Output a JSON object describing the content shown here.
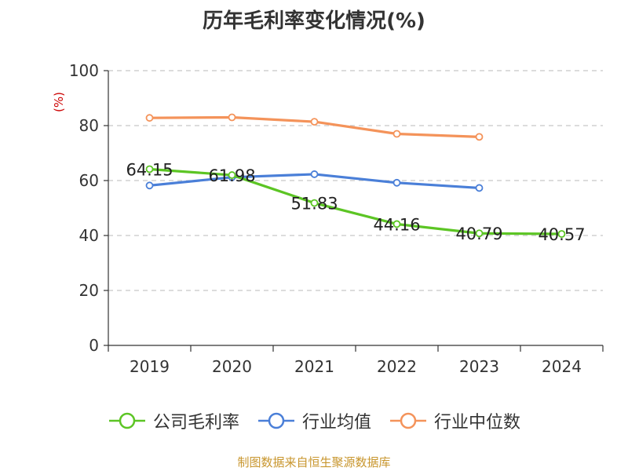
{
  "chart_data": {
    "type": "line",
    "title": "历年毛利率变化情况(%)",
    "ylabel": "(%)",
    "xlabel": "",
    "categories": [
      "2019",
      "2020",
      "2021",
      "2022",
      "2023",
      "2024"
    ],
    "ylim": [
      0,
      100
    ],
    "yticks": [
      "0",
      "20",
      "40",
      "60",
      "80",
      "100"
    ],
    "grid": true,
    "legend_position": "bottom",
    "series": [
      {
        "name": "公司毛利率",
        "color": "#5cc524",
        "values": [
          64.15,
          61.98,
          51.83,
          44.16,
          40.79,
          40.57
        ],
        "labels": [
          "64.15",
          "61.98",
          "51.83",
          "44.16",
          "40.79",
          "40.57"
        ]
      },
      {
        "name": "行业均值",
        "color": "#4a7fd8",
        "values": [
          58.2,
          61.2,
          62.3,
          59.2,
          57.3,
          null
        ]
      },
      {
        "name": "行业中位数",
        "color": "#f4935a",
        "values": [
          82.8,
          83.0,
          81.4,
          77.0,
          75.9,
          null
        ]
      }
    ]
  },
  "source": "制图数据来自恒生聚源数据库"
}
